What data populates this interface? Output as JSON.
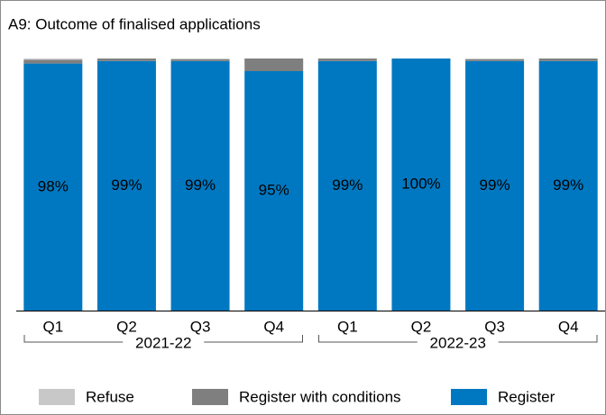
{
  "chart_data": {
    "type": "stacked-bar",
    "title": "A9: Outcome of finalised applications",
    "groups": [
      {
        "name": "2021-22",
        "categories": [
          "Q1",
          "Q2",
          "Q3",
          "Q4"
        ]
      },
      {
        "name": "2022-23",
        "categories": [
          "Q1",
          "Q2",
          "Q3",
          "Q4"
        ]
      }
    ],
    "series": [
      {
        "name": "Refuse",
        "color": "#c8c8c8",
        "values": [
          0.5,
          0,
          0.3,
          0,
          0,
          0,
          0.3,
          0
        ]
      },
      {
        "name": "Register with conditions",
        "color": "#7f7f7f",
        "values": [
          1.5,
          1,
          0.7,
          5,
          1,
          0,
          0.7,
          1
        ]
      },
      {
        "name": "Register",
        "color": "#0078c1",
        "values": [
          98,
          99,
          99,
          95,
          99,
          100,
          99,
          99
        ],
        "value_labels": [
          "98%",
          "99%",
          "99%",
          "95%",
          "99%",
          "100%",
          "99%",
          "99%"
        ]
      }
    ],
    "ylim": [
      0,
      100
    ]
  }
}
